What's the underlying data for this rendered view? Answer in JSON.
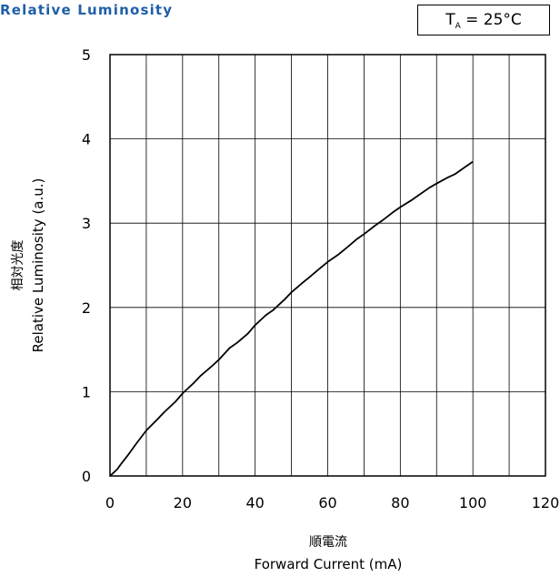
{
  "title": "Relative Luminosity",
  "condition": {
    "label_main": "T",
    "label_sub": "A",
    "label_rest": " = 25°C"
  },
  "colors": {
    "title": "#1f5fa8",
    "curve": "#000000",
    "grid": "#000000"
  },
  "chart_data": {
    "type": "line",
    "x_label_jp": "順電流",
    "x_label": "Forward Current (mA)",
    "y_label_jp": "相対光度",
    "y_label": "Relative Luminosity (a.u.)",
    "xlim": [
      0,
      120
    ],
    "ylim": [
      0,
      5
    ],
    "x_ticks": [
      0,
      20,
      40,
      60,
      80,
      100,
      120
    ],
    "y_ticks": [
      0,
      1,
      2,
      3,
      4,
      5
    ],
    "x_grid_step": 10,
    "y_grid_step": 1,
    "grid": true,
    "series": [
      {
        "x": [
          0,
          1,
          2,
          3,
          5,
          7,
          10,
          13,
          15,
          18,
          20,
          23,
          25,
          28,
          30,
          33,
          35,
          38,
          40,
          43,
          45,
          48,
          50,
          53,
          55,
          58,
          60,
          63,
          65,
          68,
          70,
          73,
          75,
          78,
          80,
          83,
          85,
          88,
          90,
          93,
          95,
          98,
          100
        ],
        "y": [
          0,
          0.04,
          0.08,
          0.14,
          0.25,
          0.37,
          0.54,
          0.67,
          0.76,
          0.88,
          0.98,
          1.1,
          1.19,
          1.3,
          1.38,
          1.52,
          1.58,
          1.69,
          1.79,
          1.91,
          1.97,
          2.09,
          2.18,
          2.29,
          2.36,
          2.47,
          2.54,
          2.63,
          2.7,
          2.81,
          2.87,
          2.97,
          3.03,
          3.13,
          3.19,
          3.27,
          3.33,
          3.42,
          3.47,
          3.54,
          3.58,
          3.67,
          3.73
        ]
      }
    ]
  }
}
